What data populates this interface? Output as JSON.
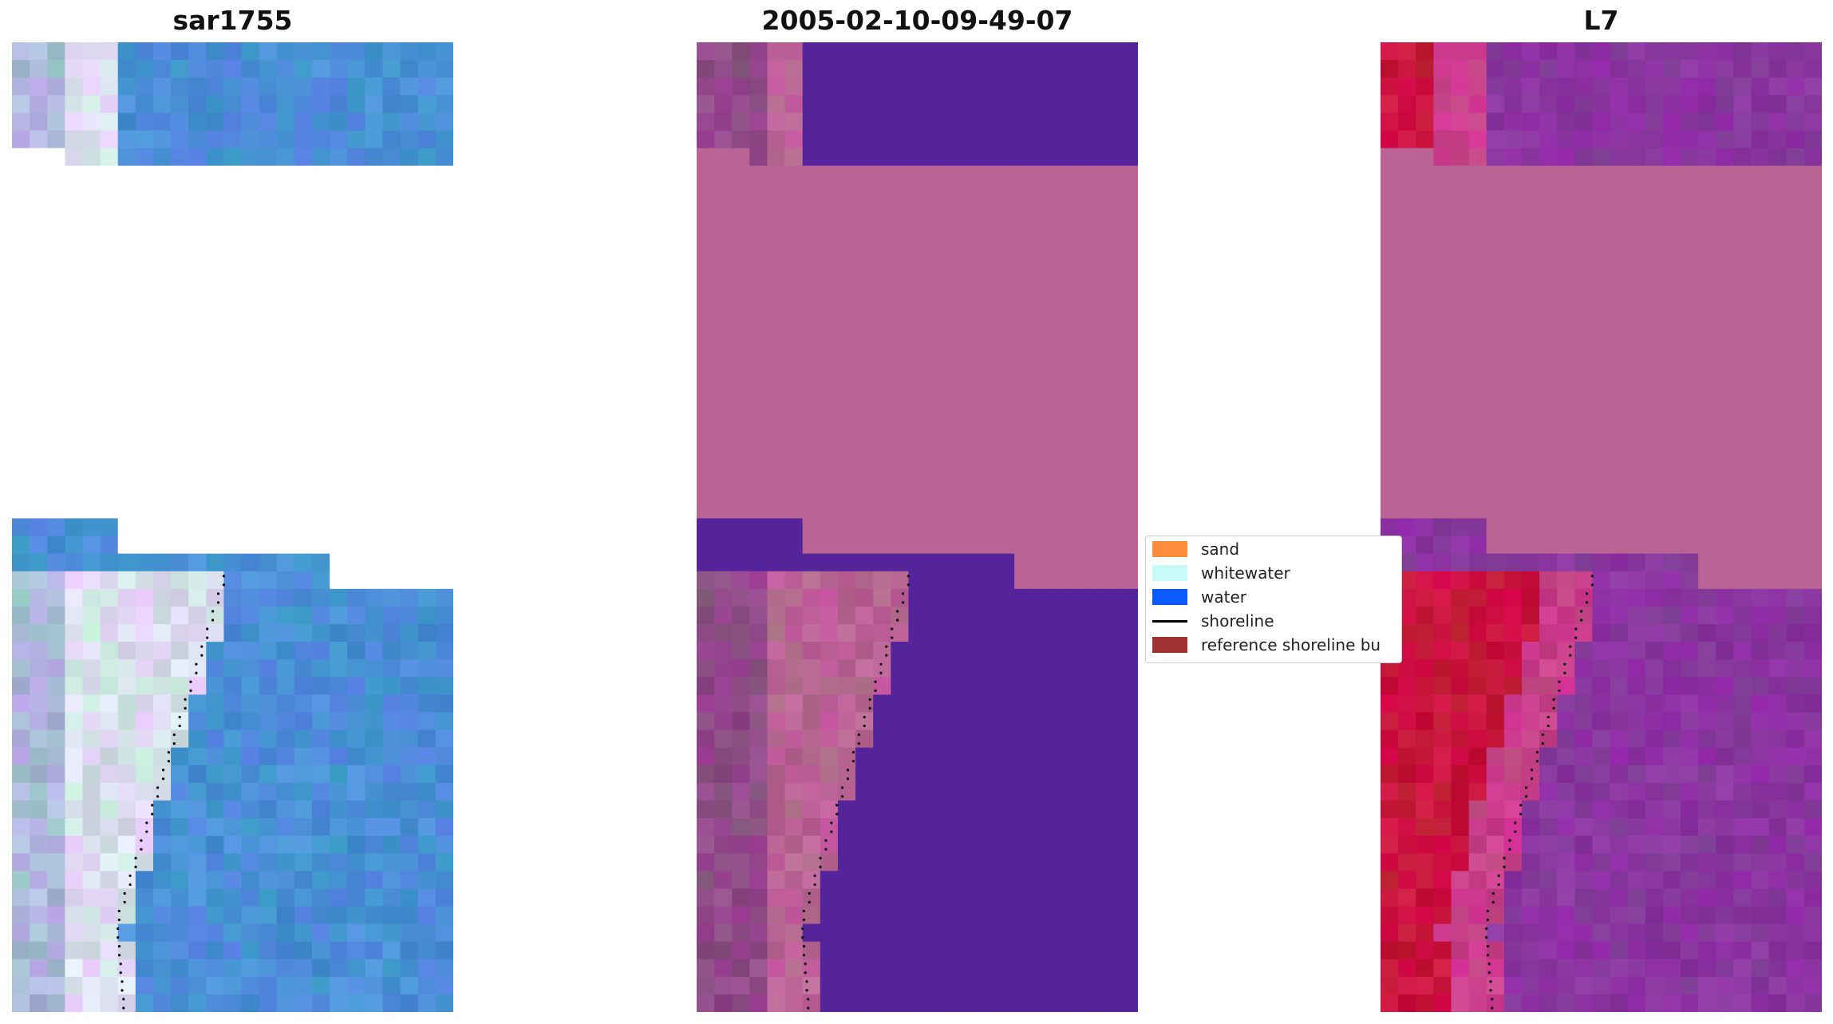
{
  "panels": [
    {
      "title": "sar1755"
    },
    {
      "title": "2005-02-10-09-49-07"
    },
    {
      "title": "L7"
    }
  ],
  "legend": {
    "items": [
      {
        "label": "sand",
        "color": "#ff8c3c",
        "kind": "patch"
      },
      {
        "label": "whitewater",
        "color": "#c8fafa",
        "kind": "patch"
      },
      {
        "label": "water",
        "color": "#0a5aff",
        "kind": "patch"
      },
      {
        "label": "shoreline",
        "color": "#000000",
        "kind": "line"
      },
      {
        "label": "reference shoreline bu",
        "color": "#a03232",
        "kind": "patch"
      }
    ]
  },
  "colors": {
    "rgb_water": "#4a8fd6",
    "rgb_sand": "#d9e0ec",
    "class_water": "#55239a",
    "class_sand": "#b96594",
    "nodata": "#ba6495",
    "l7_sand": "#c8143c",
    "l7_water": "#8a35a0"
  }
}
